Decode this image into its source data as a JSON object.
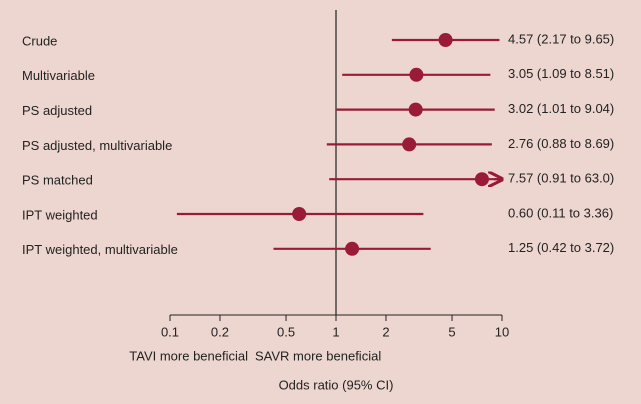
{
  "chart_data": {
    "type": "forest",
    "categories": [
      "Crude",
      "Multivariable",
      "PS adjusted",
      "PS adjusted, multivariable",
      "PS matched",
      "IPT weighted",
      "IPT weighted, multivariable"
    ],
    "values": [
      4.57,
      3.05,
      3.02,
      2.76,
      7.57,
      0.6,
      1.25
    ],
    "lower": [
      2.17,
      1.09,
      1.01,
      0.88,
      0.91,
      0.11,
      0.42
    ],
    "upper": [
      9.65,
      8.51,
      9.04,
      8.69,
      63.0,
      3.36,
      3.72
    ],
    "value_labels": [
      "4.57 (2.17 to 9.65)",
      "3.05 (1.09 to 8.51)",
      "3.02 (1.01 to 9.04)",
      "2.76 (0.88 to 8.69)",
      "7.57 (0.91 to 63.0)",
      "0.60 (0.11 to 3.36)",
      "1.25 (0.42 to 3.72)"
    ],
    "xlim": [
      0.1,
      10
    ],
    "xticks": [
      0.1,
      0.2,
      0.5,
      1,
      2,
      5,
      10
    ],
    "log_scale": true,
    "reference": 1,
    "left_annotation": "TAVI more beneficial",
    "right_annotation": "SAVR more beneficial",
    "xlabel": "Odds ratio (95% CI)",
    "color": "#9a1b35"
  }
}
